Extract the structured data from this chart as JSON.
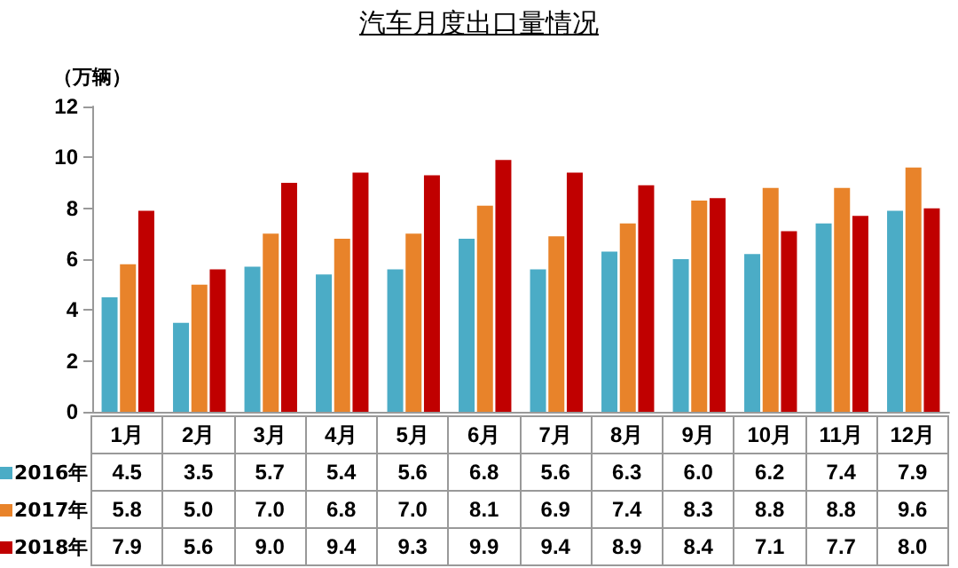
{
  "chart_data": {
    "type": "bar",
    "title": "汽车月度出口量情况",
    "ylabel": "（万辆）",
    "categories": [
      "1月",
      "2月",
      "3月",
      "4月",
      "5月",
      "6月",
      "7月",
      "8月",
      "9月",
      "10月",
      "11月",
      "12月"
    ],
    "series": [
      {
        "name": "2016年",
        "color": "#4bacc6",
        "values": [
          4.5,
          3.5,
          5.7,
          5.4,
          5.6,
          6.8,
          5.6,
          6.3,
          6.0,
          6.2,
          7.4,
          7.9
        ],
        "value_labels": [
          "4.5",
          "3.5",
          "5.7",
          "5.4",
          "5.6",
          "6.8",
          "5.6",
          "6.3",
          "6.0",
          "6.2",
          "7.4",
          "7.9"
        ]
      },
      {
        "name": "2017年",
        "color": "#e8832a",
        "values": [
          5.8,
          5.0,
          7.0,
          6.8,
          7.0,
          8.1,
          6.9,
          7.4,
          8.3,
          8.8,
          8.8,
          9.6
        ],
        "value_labels": [
          "5.8",
          "5.0",
          "7.0",
          "6.8",
          "7.0",
          "8.1",
          "6.9",
          "7.4",
          "8.3",
          "8.8",
          "8.8",
          "9.6"
        ]
      },
      {
        "name": "2018年",
        "color": "#c00000",
        "values": [
          7.9,
          5.6,
          9.0,
          9.4,
          9.3,
          9.9,
          9.4,
          8.9,
          8.4,
          7.1,
          7.7,
          8.0
        ],
        "value_labels": [
          "7.9",
          "5.6",
          "9.0",
          "9.4",
          "9.3",
          "9.9",
          "9.4",
          "8.9",
          "8.4",
          "7.1",
          "7.7",
          "8.0"
        ]
      }
    ],
    "ylim": [
      0,
      12
    ],
    "yticks": [
      0,
      2,
      4,
      6,
      8,
      10,
      12
    ],
    "grid": false,
    "legend": "bottom left"
  }
}
